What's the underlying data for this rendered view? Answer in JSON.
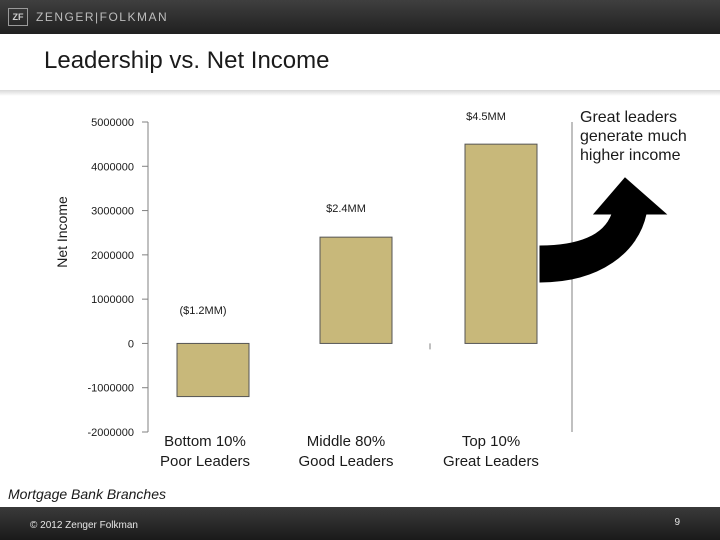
{
  "header": {
    "logo_mark": "ZF",
    "logo_text": "ZENGER|FOLKMAN"
  },
  "slide": {
    "title": "Leadership vs. Net Income",
    "callout": "Great leaders generate much higher income",
    "source_note": "Mortgage Bank Branches"
  },
  "footer": {
    "copyright": "© 2012 Zenger Folkman",
    "page_number": "9"
  },
  "colors": {
    "bar_fill": "#c8b87a",
    "arrow": "#000000"
  },
  "chart_data": {
    "type": "bar",
    "ylabel": "Net Income",
    "xlabel": "",
    "ylim": [
      -2000000,
      5000000
    ],
    "yticks": [
      5000000,
      4000000,
      3000000,
      2000000,
      1000000,
      0,
      -1000000,
      -2000000
    ],
    "ytick_labels": [
      "5000000",
      "4000000",
      "3000000",
      "2000000",
      "1000000",
      "0",
      "-1000000",
      "-2000000"
    ],
    "categories": [
      {
        "line1": "Bottom 10%",
        "line2": "Poor Leaders"
      },
      {
        "line1": "Middle 80%",
        "line2": "Good Leaders"
      },
      {
        "line1": "Top 10%",
        "line2": "Great Leaders"
      }
    ],
    "values": [
      -1200000,
      2400000,
      4500000
    ],
    "data_labels": [
      "($1.2MM)",
      "$2.4MM",
      "$4.5MM"
    ]
  }
}
